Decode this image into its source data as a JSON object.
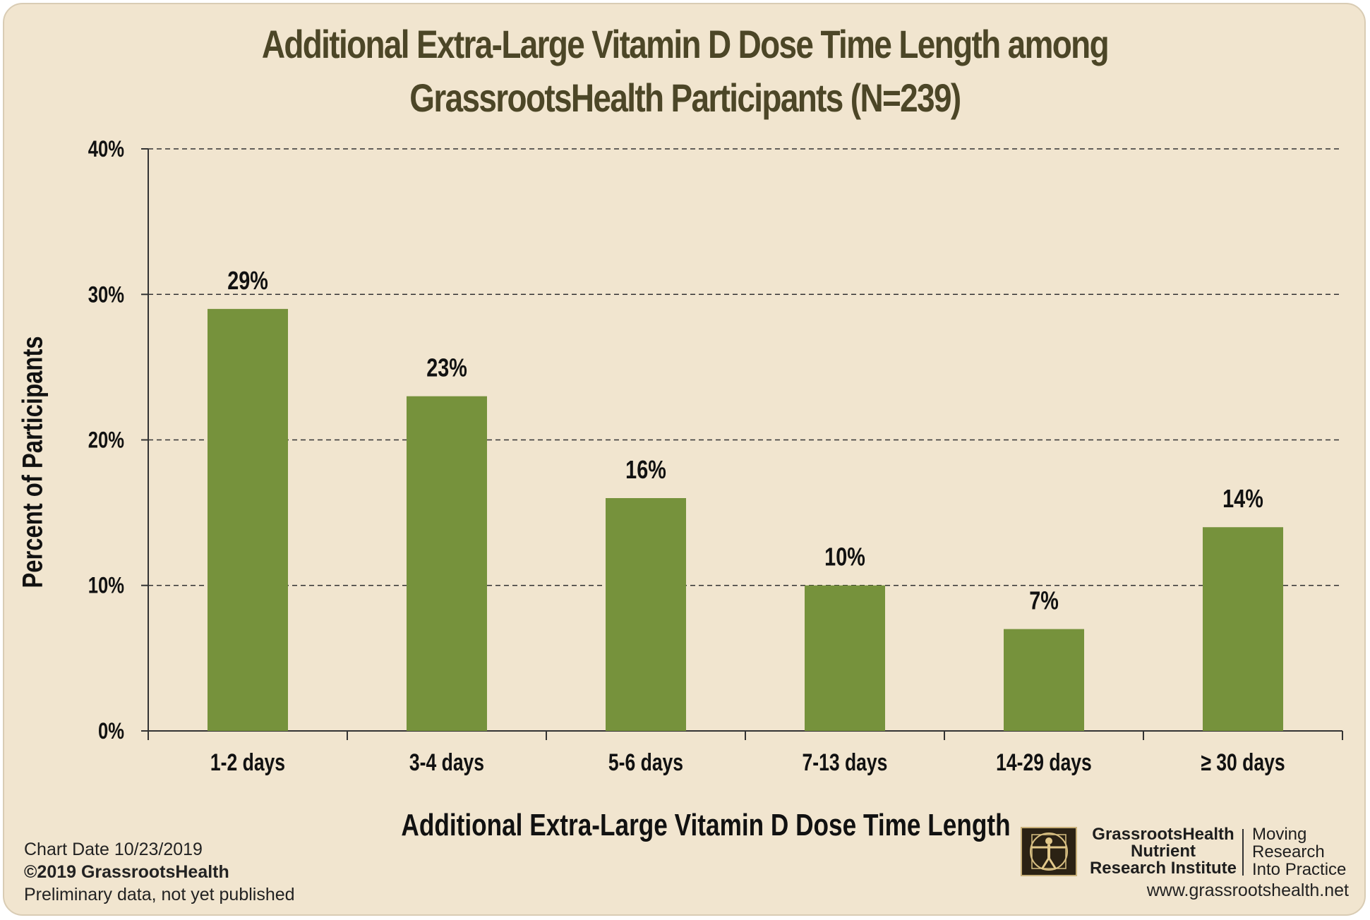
{
  "title_line1": "Additional Extra-Large Vitamin D Dose Time Length among",
  "title_line2": "GrassrootsHealth Participants (N=239)",
  "chart_data": {
    "type": "bar",
    "title": "Additional Extra-Large Vitamin D Dose Time Length among GrassrootsHealth Participants (N=239)",
    "xlabel": "Additional Extra-Large Vitamin D Dose Time Length",
    "ylabel": "Percent of Participants",
    "categories": [
      "1-2 days",
      "3-4 days",
      "5-6 days",
      "7-13 days",
      "14-29 days",
      "≥ 30 days"
    ],
    "values": [
      29,
      23,
      16,
      10,
      7,
      14
    ],
    "data_labels": [
      "29%",
      "23%",
      "16%",
      "10%",
      "7%",
      "14%"
    ],
    "ylim": [
      0,
      40
    ],
    "yticks": [
      0,
      10,
      20,
      30,
      40
    ],
    "ytick_labels": [
      "0%",
      "10%",
      "20%",
      "30%",
      "40%"
    ],
    "grid": "horizontal dashed",
    "bar_color": "#76923c"
  },
  "footer": {
    "chart_date": "Chart Date  10/23/2019",
    "copyright": "©2019 GrassrootsHealth",
    "note": "Preliminary data, not yet published",
    "org_line1": "GrassrootsHealth",
    "org_line2": "Nutrient",
    "org_line3": "Research Institute",
    "tagline1": "Moving",
    "tagline2": "Research",
    "tagline3": "Into Practice",
    "url": "www.grassrootshealth.net",
    "logo_icon": "vitruvian-man-icon"
  }
}
